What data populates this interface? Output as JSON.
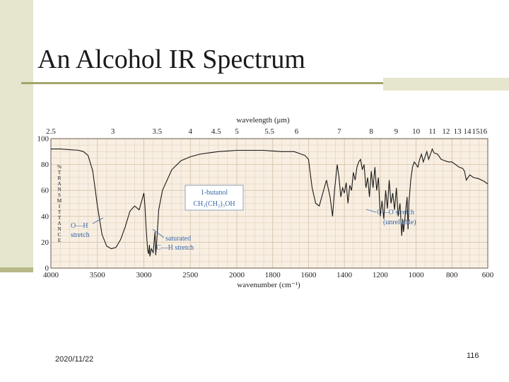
{
  "slide": {
    "title": "An Alcohol IR Spectrum",
    "date": "2020/11/22",
    "page_number": "116"
  },
  "colors": {
    "accent_bar": "#e5e6cd",
    "rule": "#a4a46a",
    "chart_bg": "#f8efe2",
    "grid": "#d8c3aa",
    "label_blue": "#3b6aa8"
  },
  "chart_data": {
    "type": "line",
    "title": "",
    "xlabel": "wavenumber (cm⁻¹)",
    "top_axis_label": "wavelength (μm)",
    "ylabel": "% TRANSMITTANCE",
    "ylim": [
      0,
      100
    ],
    "yticks": [
      0,
      20,
      40,
      60,
      80,
      100
    ],
    "x_ticks": [
      "4000",
      "3500",
      "3000",
      "2500",
      "2000",
      "1800",
      "1600",
      "1400",
      "1200",
      "1000",
      "800",
      "600"
    ],
    "top_ticks": [
      "2.5",
      "3",
      "3.5",
      "4",
      "4.5",
      "5",
      "5.5",
      "6",
      "7",
      "8",
      "9",
      "10",
      "11",
      "12",
      "13",
      "14",
      "15",
      "16"
    ],
    "grid": true,
    "compound_box": {
      "name": "1-butanol",
      "formula": "CH₃(CH₂)₃OH"
    },
    "annotations": [
      {
        "line1": "O—H",
        "line2": "stretch"
      },
      {
        "line1": "saturated",
        "line2": "C—H stretch"
      },
      {
        "line1": "C—O stretch",
        "line2": "(unreliable)"
      }
    ],
    "series": [
      {
        "x": [
          4000,
          3900,
          3800,
          3700,
          3650,
          3600,
          3550,
          3500,
          3450,
          3400,
          3350,
          3300,
          3250,
          3200,
          3150,
          3100,
          3050,
          3000,
          2990,
          2975,
          2960,
          2950,
          2940,
          2935,
          2920,
          2900,
          2880,
          2872,
          2860,
          2840,
          2800,
          2700,
          2600,
          2500,
          2400,
          2300,
          2200,
          2100,
          2000,
          1950,
          1900,
          1850,
          1800,
          1750,
          1720,
          1700,
          1680,
          1660,
          1640,
          1620,
          1600,
          1580,
          1560,
          1540,
          1520,
          1500,
          1480,
          1466,
          1455,
          1440,
          1430,
          1420,
          1410,
          1400,
          1390,
          1380,
          1370,
          1360,
          1350,
          1340,
          1330,
          1320,
          1310,
          1300,
          1290,
          1280,
          1270,
          1260,
          1250,
          1240,
          1230,
          1220,
          1210,
          1200,
          1190,
          1180,
          1170,
          1160,
          1150,
          1140,
          1130,
          1120,
          1110,
          1100,
          1090,
          1080,
          1075,
          1070,
          1060,
          1050,
          1045,
          1040,
          1030,
          1020,
          1010,
          1000,
          990,
          980,
          970,
          960,
          950,
          940,
          930,
          920,
          910,
          900,
          880,
          860,
          840,
          820,
          800,
          780,
          760,
          740,
          730,
          720,
          700,
          680,
          650,
          620,
          600
        ],
        "y": [
          92,
          92,
          91.5,
          91,
          90,
          87,
          75,
          48,
          26,
          17,
          15,
          16,
          22,
          32,
          44,
          48,
          45,
          58,
          50,
          30,
          14,
          11,
          18,
          9,
          15,
          12,
          28,
          10,
          22,
          45,
          60,
          76,
          83,
          86,
          88,
          89,
          90,
          90.5,
          91,
          91,
          91,
          91,
          90.5,
          90,
          90,
          90,
          90,
          89,
          88,
          87,
          84,
          62,
          50,
          48,
          58,
          68,
          55,
          40,
          60,
          80,
          70,
          55,
          62,
          58,
          66,
          50,
          64,
          60,
          74,
          68,
          78,
          82,
          84,
          76,
          80,
          62,
          70,
          55,
          75,
          62,
          78,
          60,
          70,
          40,
          52,
          38,
          60,
          46,
          68,
          50,
          58,
          45,
          62,
          40,
          50,
          25,
          38,
          28,
          42,
          55,
          30,
          50,
          68,
          78,
          82,
          80,
          78,
          84,
          88,
          82,
          86,
          90,
          84,
          88,
          92,
          89,
          88,
          84,
          83,
          82,
          82,
          80,
          78,
          77,
          75,
          68,
          72,
          70,
          69,
          67,
          65
        ]
      }
    ]
  }
}
